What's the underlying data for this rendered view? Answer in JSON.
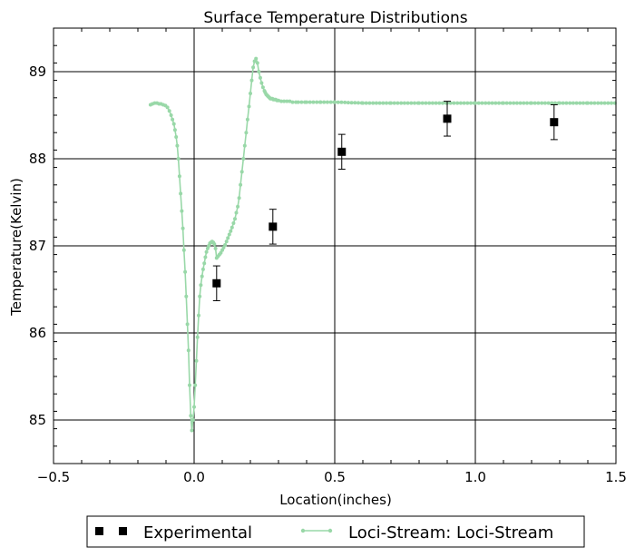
{
  "chart_data": {
    "type": "line",
    "title": "Surface Temperature Distributions",
    "xlabel": "Location(inches)",
    "ylabel": "Temperature(Kelvin)",
    "xlim": [
      -0.5,
      1.5
    ],
    "ylim": [
      84.5,
      89.5
    ],
    "x_ticks": [
      -0.5,
      0.0,
      0.5,
      1.0,
      1.5
    ],
    "x_tick_labels": [
      "−0.5",
      "0.0",
      "0.5",
      "1.0",
      "1.5"
    ],
    "y_ticks": [
      85,
      86,
      87,
      88,
      89
    ],
    "y_tick_labels": [
      "85",
      "86",
      "87",
      "88",
      "89"
    ],
    "grid": true,
    "legend_position": "bottom-center",
    "colors": {
      "simulation": "#99d8a8",
      "experimental": "#000000",
      "grid": "#000000"
    },
    "series": [
      {
        "name": "Experimental",
        "kind": "scatter-errorbar",
        "marker": "square",
        "points": [
          {
            "x": 0.08,
            "y": 86.57,
            "err": 0.2
          },
          {
            "x": 0.28,
            "y": 87.22,
            "err": 0.2
          },
          {
            "x": 0.525,
            "y": 88.08,
            "err": 0.2
          },
          {
            "x": 0.9,
            "y": 88.46,
            "err": 0.2
          },
          {
            "x": 1.28,
            "y": 88.42,
            "err": 0.2
          }
        ]
      },
      {
        "name": "Loci-Stream: Loci-Stream",
        "kind": "line-dots",
        "x": [
          -0.155,
          -0.148,
          -0.14,
          -0.132,
          -0.125,
          -0.118,
          -0.11,
          -0.102,
          -0.095,
          -0.088,
          -0.082,
          -0.077,
          -0.072,
          -0.068,
          -0.064,
          -0.06,
          -0.056,
          -0.052,
          -0.048,
          -0.044,
          -0.04,
          -0.036,
          -0.032,
          -0.028,
          -0.024,
          -0.02,
          -0.016,
          -0.012,
          -0.008,
          -0.004,
          0.0,
          0.004,
          0.008,
          0.012,
          0.016,
          0.02,
          0.024,
          0.028,
          0.032,
          0.036,
          0.04,
          0.044,
          0.048,
          0.052,
          0.056,
          0.06,
          0.064,
          0.068,
          0.072,
          0.076,
          0.08,
          0.085,
          0.09,
          0.095,
          0.1,
          0.105,
          0.11,
          0.115,
          0.12,
          0.125,
          0.13,
          0.135,
          0.14,
          0.145,
          0.15,
          0.155,
          0.16,
          0.165,
          0.17,
          0.175,
          0.18,
          0.185,
          0.19,
          0.195,
          0.2,
          0.205,
          0.21,
          0.215,
          0.22,
          0.225,
          0.23,
          0.235,
          0.24,
          0.245,
          0.25,
          0.253,
          0.256,
          0.259,
          0.262,
          0.265,
          0.268,
          0.271,
          0.274,
          0.278,
          0.282,
          0.286,
          0.29,
          0.295,
          0.3,
          0.31,
          0.32,
          0.33,
          0.34,
          0.35,
          0.37,
          0.4,
          0.45,
          0.5,
          0.6,
          0.7,
          0.8,
          0.9,
          1.0,
          1.1,
          1.2,
          1.3,
          1.4,
          1.5
        ],
        "y": [
          88.62,
          88.63,
          88.64,
          88.64,
          88.63,
          88.63,
          88.62,
          88.61,
          88.59,
          88.55,
          88.5,
          88.45,
          88.4,
          88.33,
          88.25,
          88.15,
          88.0,
          87.8,
          87.6,
          87.4,
          87.2,
          86.95,
          86.7,
          86.42,
          86.1,
          85.8,
          85.4,
          85.05,
          84.88,
          85.0,
          85.15,
          85.4,
          85.68,
          85.95,
          86.2,
          86.42,
          86.55,
          86.65,
          86.73,
          86.8,
          86.87,
          86.93,
          86.97,
          87.0,
          87.03,
          87.04,
          87.05,
          87.04,
          87.02,
          86.97,
          86.86,
          86.88,
          86.9,
          86.92,
          86.95,
          86.98,
          87.01,
          87.05,
          87.09,
          87.13,
          87.17,
          87.21,
          87.26,
          87.31,
          87.38,
          87.45,
          87.55,
          87.7,
          87.85,
          88.0,
          88.15,
          88.3,
          88.45,
          88.6,
          88.75,
          88.9,
          89.05,
          89.12,
          89.15,
          89.1,
          89.0,
          88.93,
          88.87,
          88.82,
          88.78,
          88.76,
          88.74,
          88.73,
          88.72,
          88.71,
          88.7,
          88.69,
          88.69,
          88.69,
          88.68,
          88.68,
          88.68,
          88.67,
          88.67,
          88.66,
          88.66,
          88.66,
          88.66,
          88.65,
          88.65,
          88.65,
          88.65,
          88.65,
          88.64,
          88.64,
          88.64,
          88.64,
          88.64,
          88.64,
          88.64,
          88.64,
          88.64,
          88.64
        ]
      }
    ]
  }
}
